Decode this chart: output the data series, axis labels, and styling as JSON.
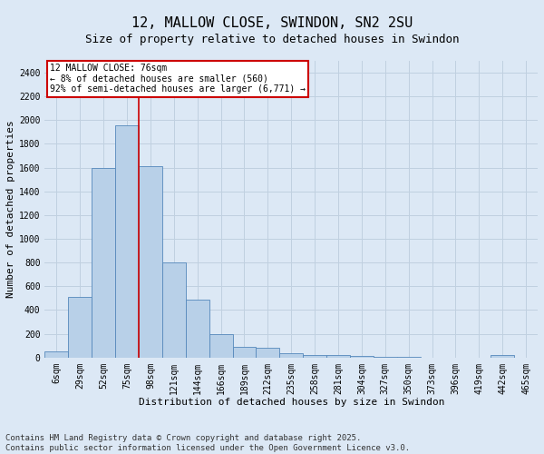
{
  "title": "12, MALLOW CLOSE, SWINDON, SN2 2SU",
  "subtitle": "Size of property relative to detached houses in Swindon",
  "xlabel": "Distribution of detached houses by size in Swindon",
  "ylabel": "Number of detached properties",
  "categories": [
    "6sqm",
    "29sqm",
    "52sqm",
    "75sqm",
    "98sqm",
    "121sqm",
    "144sqm",
    "166sqm",
    "189sqm",
    "212sqm",
    "235sqm",
    "258sqm",
    "281sqm",
    "304sqm",
    "327sqm",
    "350sqm",
    "373sqm",
    "396sqm",
    "419sqm",
    "442sqm",
    "465sqm"
  ],
  "values": [
    50,
    510,
    1600,
    1960,
    1610,
    800,
    485,
    200,
    90,
    80,
    35,
    20,
    20,
    10,
    5,
    3,
    2,
    2,
    1,
    20,
    2
  ],
  "bar_color": "#b8d0e8",
  "bar_edge_color": "#5588bb",
  "vline_color": "#cc0000",
  "vline_pos": 3.5,
  "annotation_text": "12 MALLOW CLOSE: 76sqm\n← 8% of detached houses are smaller (560)\n92% of semi-detached houses are larger (6,771) →",
  "annotation_box_color": "#ffffff",
  "annotation_box_edge": "#cc0000",
  "grid_color": "#c0d0e0",
  "bg_color": "#dce8f5",
  "ylim": [
    0,
    2500
  ],
  "yticks": [
    0,
    200,
    400,
    600,
    800,
    1000,
    1200,
    1400,
    1600,
    1800,
    2000,
    2200,
    2400
  ],
  "footer": "Contains HM Land Registry data © Crown copyright and database right 2025.\nContains public sector information licensed under the Open Government Licence v3.0.",
  "title_fontsize": 11,
  "subtitle_fontsize": 9,
  "xlabel_fontsize": 8,
  "ylabel_fontsize": 8,
  "tick_fontsize": 7,
  "annot_fontsize": 7,
  "footer_fontsize": 6.5
}
